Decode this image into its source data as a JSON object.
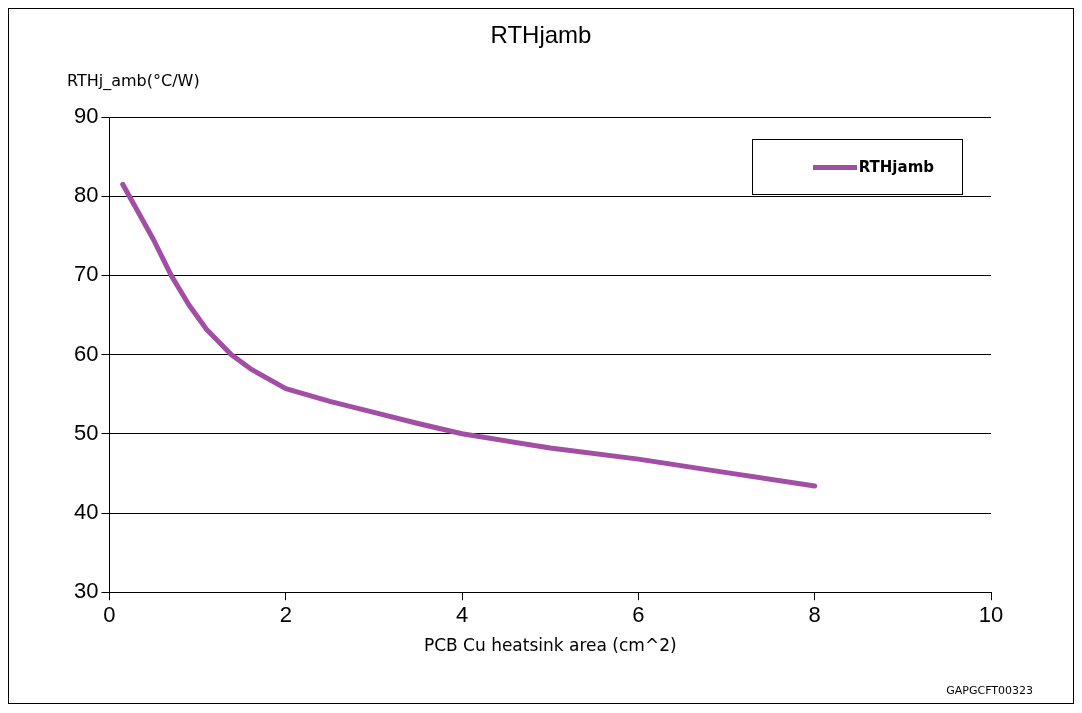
{
  "chart_data": {
    "type": "line",
    "title": "RTHjamb",
    "ylabel": "RTHj_amb(°C/W)",
    "xlabel": "PCB Cu heatsink area (cm^2)",
    "x": [
      0.15,
      0.3,
      0.5,
      0.7,
      0.9,
      1.1,
      1.38,
      1.6,
      2,
      2.5,
      3,
      3.5,
      4,
      5,
      6,
      7,
      8
    ],
    "series": [
      {
        "name": "RTHjamb",
        "color": "#a24ea4",
        "values": [
          81.5,
          78.5,
          74.5,
          70.0,
          66.3,
          63.2,
          60.0,
          58.2,
          55.7,
          54.1,
          52.7,
          51.3,
          50.0,
          48.2,
          46.8,
          45.1,
          43.4
        ]
      }
    ],
    "xlim": [
      0,
      10
    ],
    "xticks": [
      0,
      2,
      4,
      6,
      8,
      10
    ],
    "ylim": [
      30,
      90
    ],
    "yticks": [
      30,
      40,
      50,
      60,
      70,
      80,
      90
    ],
    "grid": "y",
    "legend": "top right",
    "marker": "none",
    "line_style": "solid",
    "annotations": [
      "GAPGCFT00323"
    ]
  }
}
